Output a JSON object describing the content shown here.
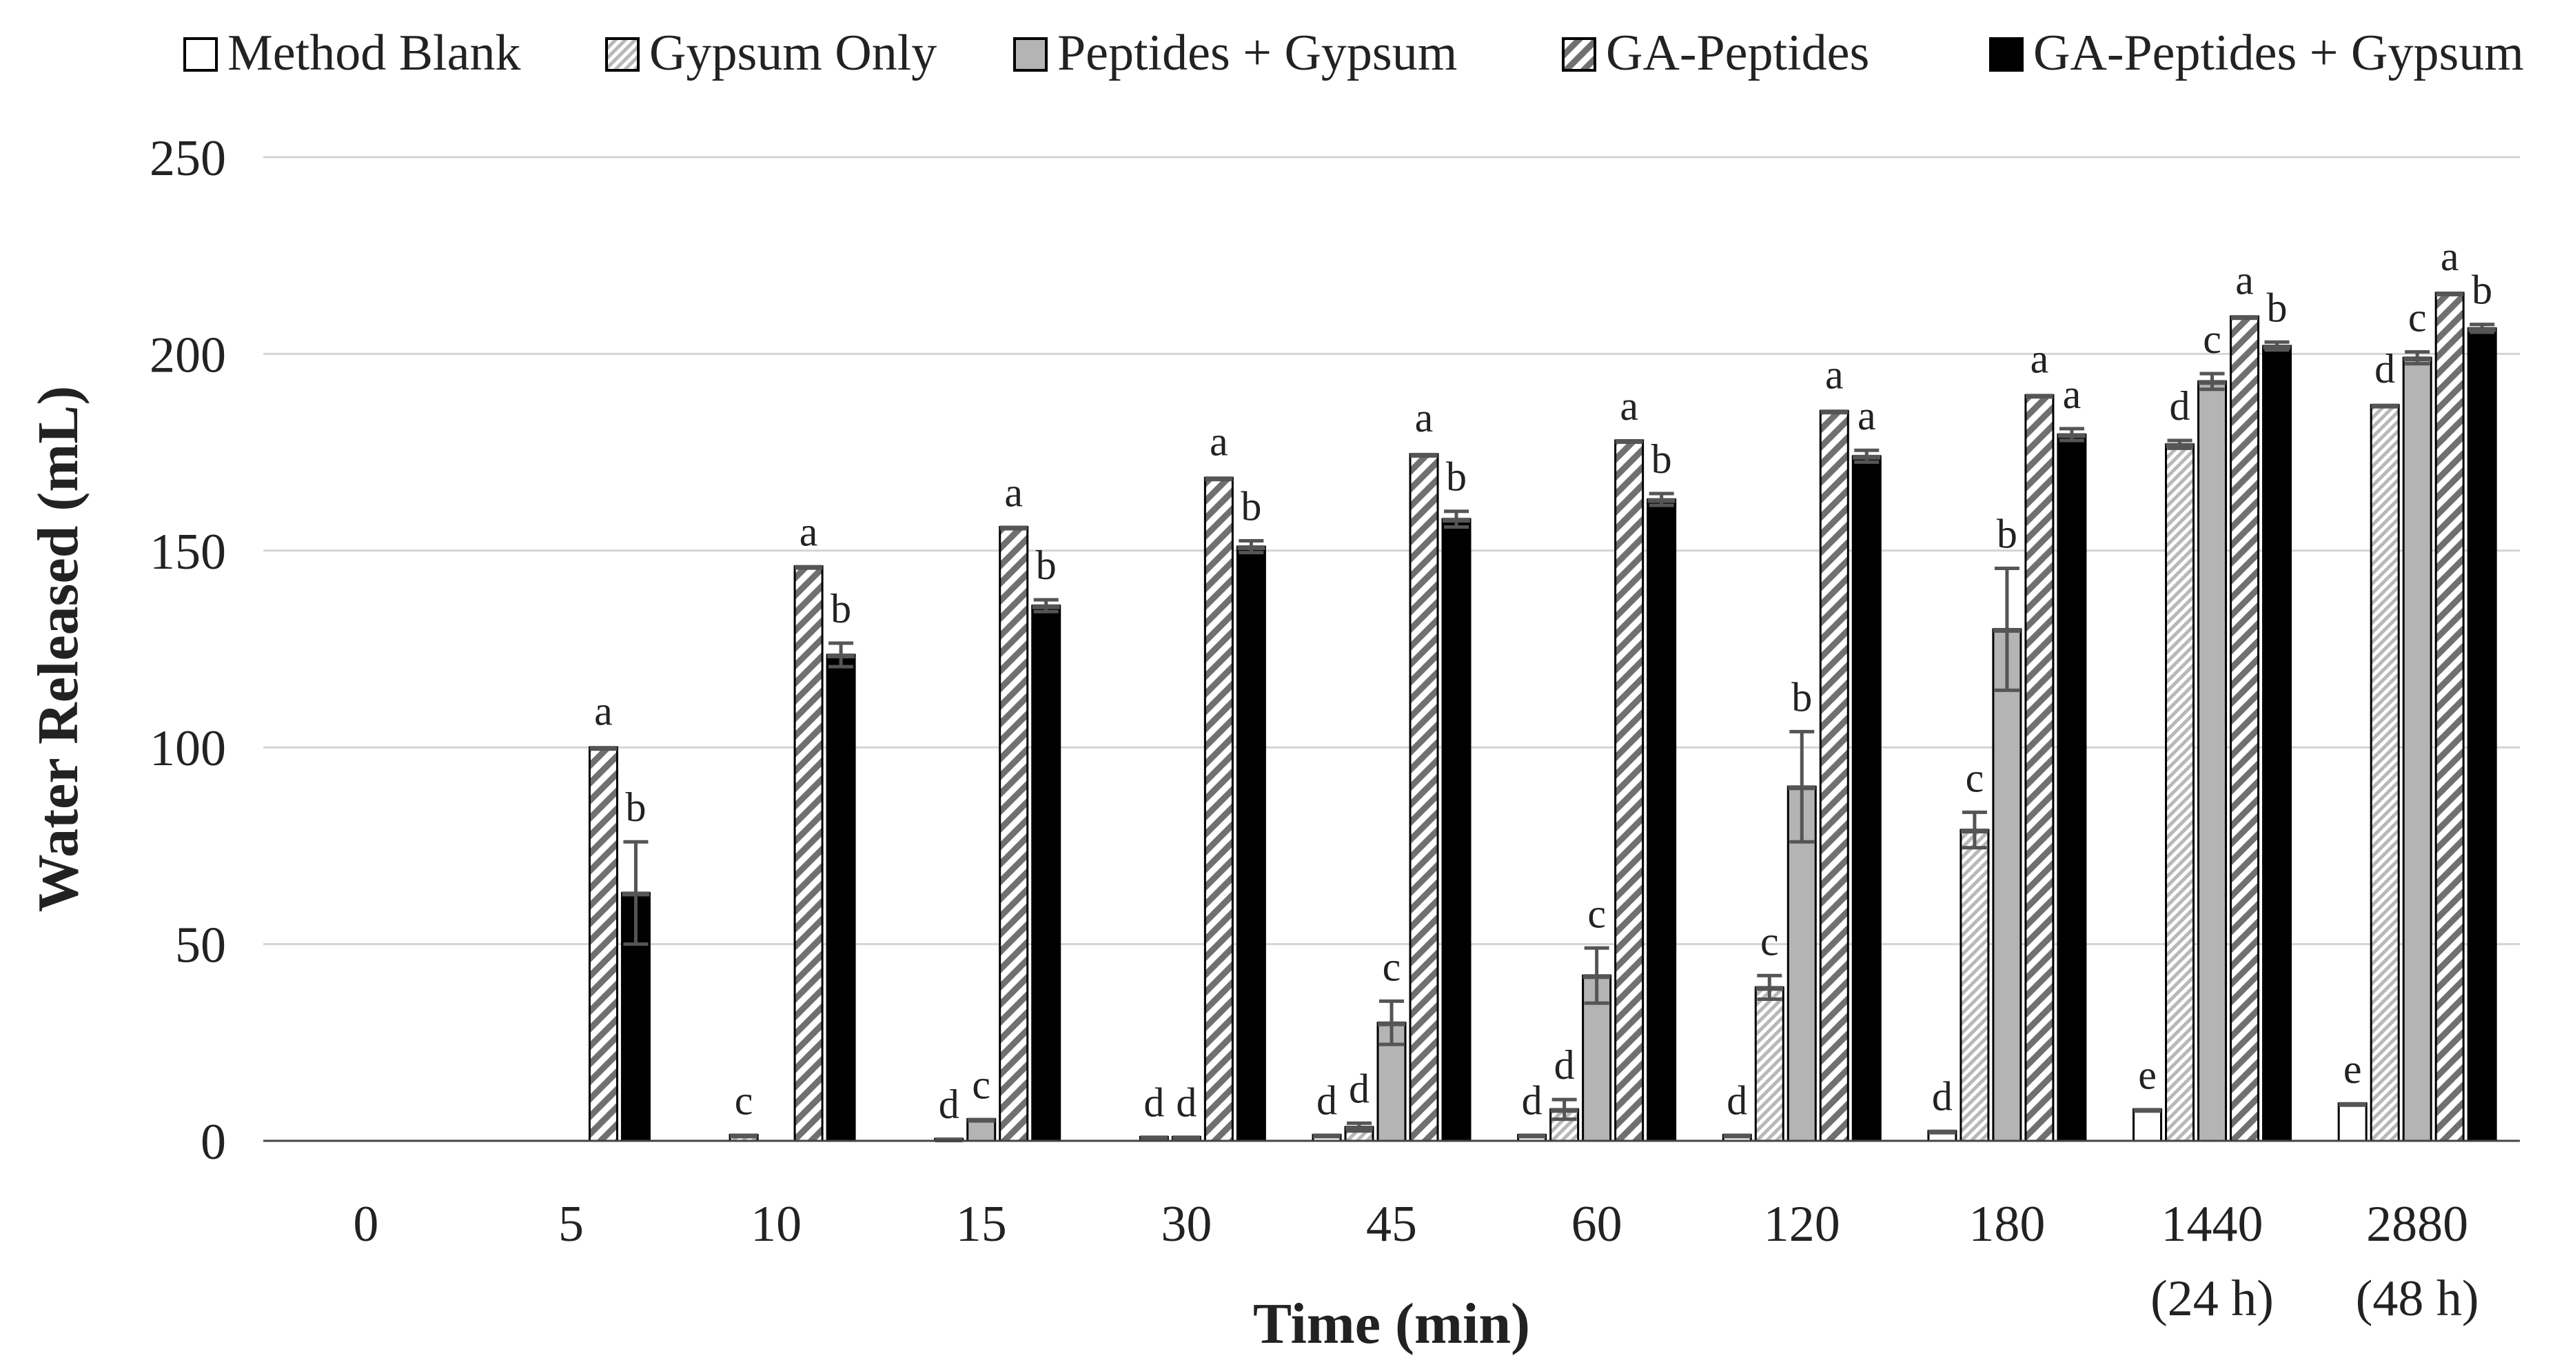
{
  "chart_data": {
    "type": "bar",
    "title": "",
    "xlabel": "Time (min)",
    "ylabel": "Water Released (mL)",
    "ylim": [
      0,
      250
    ],
    "yticks": [
      0,
      50,
      100,
      150,
      200,
      250
    ],
    "grid": true,
    "legend_position": "top",
    "categories": [
      {
        "label": "0",
        "sub": ""
      },
      {
        "label": "5",
        "sub": ""
      },
      {
        "label": "10",
        "sub": ""
      },
      {
        "label": "15",
        "sub": ""
      },
      {
        "label": "30",
        "sub": ""
      },
      {
        "label": "45",
        "sub": ""
      },
      {
        "label": "60",
        "sub": ""
      },
      {
        "label": "120",
        "sub": ""
      },
      {
        "label": "180",
        "sub": ""
      },
      {
        "label": "1440",
        "sub": "(24 h)"
      },
      {
        "label": "2880",
        "sub": "(48 h)"
      }
    ],
    "series": [
      {
        "name": "Method Blank",
        "pattern": "solid-white",
        "values": [
          0,
          0,
          0,
          0,
          0,
          1.5,
          1.5,
          1.5,
          2.5,
          8,
          9.5
        ],
        "errors": [
          0,
          0,
          0,
          0,
          0,
          0,
          0,
          0,
          0,
          0,
          0
        ],
        "letters": [
          "",
          "",
          "",
          "",
          "",
          "d",
          "d",
          "d",
          "d",
          "e",
          "e"
        ]
      },
      {
        "name": "Gypsum Only",
        "pattern": "diagonal-fine",
        "values": [
          0,
          0,
          1.5,
          0.5,
          1,
          3.5,
          8,
          39,
          79,
          177,
          187
        ],
        "errors": [
          0,
          0,
          0,
          0,
          0,
          1,
          2.5,
          3,
          4.5,
          1,
          0.5
        ],
        "letters": [
          "",
          "",
          "c",
          "d",
          "d",
          "d",
          "d",
          "c",
          "c",
          "d",
          "d"
        ]
      },
      {
        "name": "Peptides + Gypsum",
        "pattern": "solid-gray",
        "values": [
          0,
          0,
          0,
          5.5,
          1,
          30,
          42,
          90,
          130,
          193,
          199
        ],
        "errors": [
          0,
          0,
          0,
          0,
          0,
          5.5,
          7,
          14,
          15.5,
          2,
          1.5
        ],
        "letters": [
          "",
          "",
          "",
          "c",
          "d",
          "c",
          "c",
          "b",
          "b",
          "c",
          "c"
        ]
      },
      {
        "name": "GA-Peptides",
        "pattern": "diagonal-wide",
        "values": [
          0,
          100,
          146,
          156,
          168.5,
          174.5,
          178,
          185.5,
          189.5,
          209.5,
          215.5
        ],
        "errors": [
          0,
          0.5,
          0,
          0,
          0.5,
          0.5,
          0,
          0.5,
          0.5,
          0.5,
          0.5
        ],
        "letters": [
          "",
          "a",
          "a",
          "a",
          "a",
          "a",
          "a",
          "a",
          "a",
          "a",
          "a"
        ]
      },
      {
        "name": "GA-Peptides + Gypsum",
        "pattern": "solid-black",
        "values": [
          0,
          63,
          123.5,
          136,
          151,
          158,
          163,
          174,
          179.5,
          202,
          206.5
        ],
        "errors": [
          0,
          13,
          3,
          1.5,
          1.5,
          2,
          1.5,
          1.5,
          1.5,
          1,
          1
        ],
        "letters": [
          "",
          "b",
          "b",
          "b",
          "b",
          "b",
          "b",
          "a",
          "a",
          "b",
          "b"
        ]
      }
    ]
  }
}
